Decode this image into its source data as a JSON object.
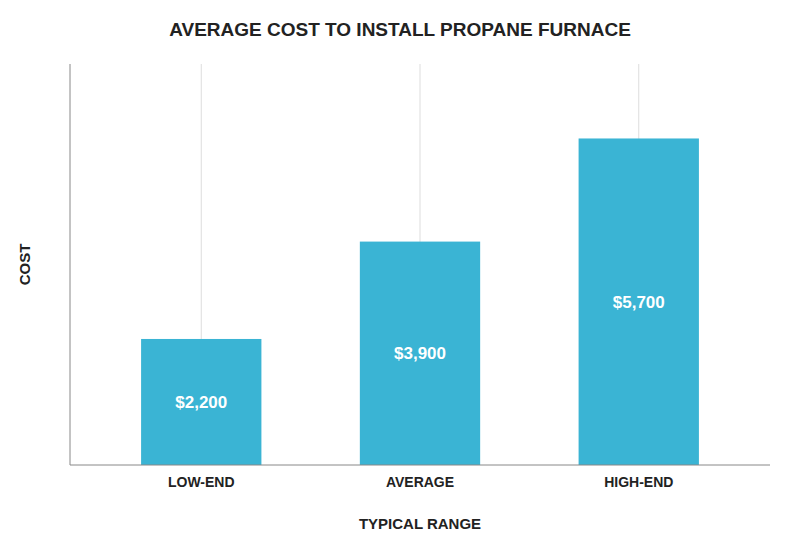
{
  "chart_data": {
    "type": "bar",
    "title": "AVERAGE COST TO INSTALL PROPANE FURNACE",
    "categories": [
      "LOW-END",
      "AVERAGE",
      "HIGH-END"
    ],
    "values": [
      2200,
      3900,
      5700
    ],
    "value_labels": [
      "$2,200",
      "$3,900",
      "$5,700"
    ],
    "data_labels": true,
    "xlabel": "TYPICAL RANGE",
    "ylabel": "COST",
    "ylim": [
      0,
      7000
    ],
    "color": "#3ab4d4",
    "grid": true,
    "tick_labels": "x"
  }
}
